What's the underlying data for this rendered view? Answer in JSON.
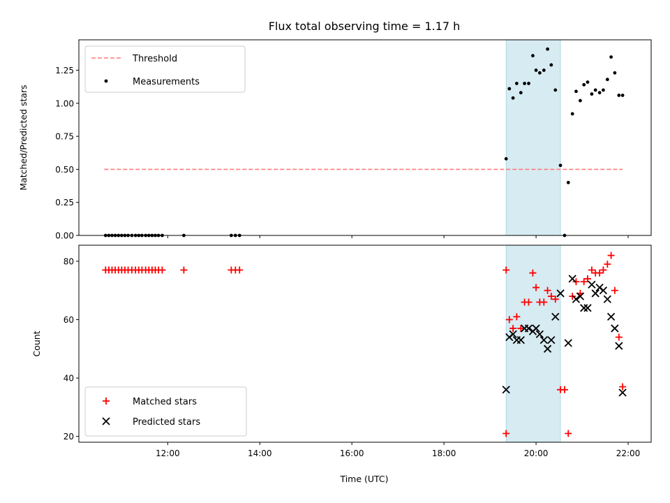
{
  "chart_data": [
    {
      "type": "scatter",
      "title": "Flux total observing time = 1.17 h",
      "xlabel": "",
      "ylabel": "Matched/Predicted stars",
      "xlim": [
        10.07,
        22.5
      ],
      "ylim": [
        0,
        1.48
      ],
      "yticks": [
        "0.00",
        "0.25",
        "0.50",
        "0.75",
        "1.00",
        "1.25"
      ],
      "grid": false,
      "legend_position": "top-left",
      "shaded_interval": [
        19.35,
        20.53
      ],
      "series": [
        {
          "name": "Threshold",
          "kind": "dashed-line",
          "color": "#ff7b7b",
          "x": [
            10.62,
            21.88
          ],
          "y": [
            0.5,
            0.5
          ]
        },
        {
          "name": "Measurements",
          "kind": "dots",
          "color": "#000000",
          "x": [
            10.65,
            10.72,
            10.79,
            10.86,
            10.93,
            11.0,
            11.07,
            11.14,
            11.22,
            11.3,
            11.37,
            11.44,
            11.52,
            11.59,
            11.66,
            11.73,
            11.8,
            11.88,
            12.35,
            13.38,
            13.47,
            13.56,
            19.35,
            19.42,
            19.5,
            19.58,
            19.67,
            19.75,
            19.84,
            19.93,
            20.0,
            20.08,
            20.17,
            20.25,
            20.33,
            20.42,
            20.53,
            20.62,
            20.7,
            20.79,
            20.87,
            20.96,
            21.04,
            21.12,
            21.21,
            21.29,
            21.38,
            21.46,
            21.55,
            21.63,
            21.71,
            21.8,
            21.88
          ],
          "y": [
            0,
            0,
            0,
            0,
            0,
            0,
            0,
            0,
            0,
            0,
            0,
            0,
            0,
            0,
            0,
            0,
            0,
            0,
            0,
            0,
            0,
            0,
            0.58,
            1.11,
            1.04,
            1.15,
            1.08,
            1.15,
            1.15,
            1.36,
            1.25,
            1.23,
            1.25,
            1.41,
            1.29,
            1.1,
            0.53,
            0.0,
            0.4,
            0.92,
            1.09,
            1.02,
            1.14,
            1.16,
            1.07,
            1.1,
            1.08,
            1.1,
            1.18,
            1.35,
            1.23,
            1.06,
            1.06
          ]
        }
      ]
    },
    {
      "type": "scatter",
      "title": "",
      "xlabel": "Time (UTC)",
      "ylabel": "Count",
      "xlim": [
        10.07,
        22.5
      ],
      "ylim": [
        18,
        85.5
      ],
      "yticks": [
        "20",
        "40",
        "60",
        "80"
      ],
      "xticks": [
        "12:00",
        "14:00",
        "16:00",
        "18:00",
        "20:00",
        "22:00"
      ],
      "grid": false,
      "legend_position": "bottom-left",
      "shaded_interval": [
        19.35,
        20.53
      ],
      "series": [
        {
          "name": "Matched stars",
          "marker": "plus",
          "color": "#ff0000",
          "x": [
            10.65,
            10.72,
            10.79,
            10.86,
            10.93,
            11.0,
            11.07,
            11.14,
            11.22,
            11.3,
            11.37,
            11.44,
            11.52,
            11.59,
            11.66,
            11.73,
            11.8,
            11.88,
            12.35,
            13.38,
            13.47,
            13.56,
            19.35,
            19.35,
            19.42,
            19.5,
            19.58,
            19.67,
            19.75,
            19.84,
            19.93,
            20.0,
            20.08,
            20.17,
            20.25,
            20.33,
            20.42,
            20.53,
            20.62,
            20.7,
            20.79,
            20.87,
            20.96,
            21.04,
            21.12,
            21.21,
            21.29,
            21.38,
            21.46,
            21.55,
            21.63,
            21.71,
            21.8,
            21.88
          ],
          "y": [
            77,
            77,
            77,
            77,
            77,
            77,
            77,
            77,
            77,
            77,
            77,
            77,
            77,
            77,
            77,
            77,
            77,
            77,
            77,
            77,
            77,
            77,
            77,
            21,
            60,
            57,
            61,
            57,
            66,
            66,
            76,
            71,
            66,
            66,
            70,
            68,
            67,
            36,
            36,
            21,
            68,
            73,
            69,
            73,
            74,
            77,
            76,
            76,
            77,
            79,
            82,
            70,
            54,
            37
          ]
        },
        {
          "name": "Predicted stars",
          "marker": "x",
          "color": "#000000",
          "x": [
            19.35,
            19.42,
            19.5,
            19.58,
            19.67,
            19.75,
            19.84,
            19.93,
            20.0,
            20.08,
            20.17,
            20.25,
            20.33,
            20.42,
            20.53,
            20.7,
            20.79,
            20.87,
            20.96,
            21.04,
            21.12,
            21.21,
            21.29,
            21.38,
            21.46,
            21.55,
            21.63,
            21.71,
            21.8,
            21.88
          ],
          "y": [
            36,
            54,
            55,
            53,
            53,
            57,
            57,
            56,
            57,
            55,
            53,
            50,
            53,
            61,
            69,
            52,
            74,
            67,
            68,
            64,
            64,
            72,
            69,
            71,
            70,
            67,
            61,
            57,
            51,
            35
          ]
        }
      ]
    }
  ]
}
